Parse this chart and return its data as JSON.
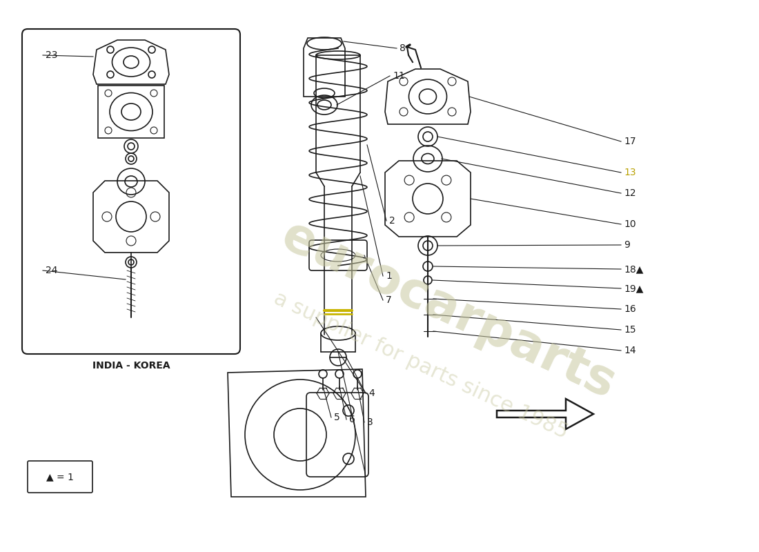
{
  "bg_color": "#ffffff",
  "line_color": "#1a1a1a",
  "watermark_lines": [
    "eurocarparts",
    "a supplier for parts since 1985"
  ],
  "watermark_color": "#c8c8a0",
  "inset_caption": "INDIA - KOREA",
  "legend_text": "▲ = 1",
  "label_13_color": "#b8a000",
  "figsize": [
    11.0,
    8.0
  ],
  "dpi": 100
}
